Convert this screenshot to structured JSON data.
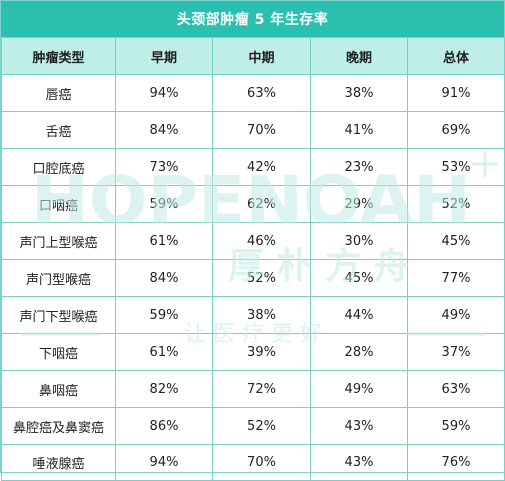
{
  "title": "头颈部肿瘤 5 年生存率",
  "headers": [
    "肿瘤类型",
    "早期",
    "中期",
    "晚期",
    "总体"
  ],
  "rows": [
    {
      "type": "唇癌",
      "early": "94%",
      "mid": "63%",
      "late": "38%",
      "overall": "91%"
    },
    {
      "type": "舌癌",
      "early": "84%",
      "mid": "70%",
      "late": "41%",
      "overall": "69%"
    },
    {
      "type": "口腔底癌",
      "early": "73%",
      "mid": "42%",
      "late": "23%",
      "overall": "53%"
    },
    {
      "type": "口咽癌",
      "early": "59%",
      "mid": "62%",
      "late": "29%",
      "overall": "52%"
    },
    {
      "type": "声门上型喉癌",
      "early": "61%",
      "mid": "46%",
      "late": "30%",
      "overall": "45%"
    },
    {
      "type": "声门型喉癌",
      "early": "84%",
      "mid": "52%",
      "late": "45%",
      "overall": "77%"
    },
    {
      "type": "声门下型喉癌",
      "early": "59%",
      "mid": "38%",
      "late": "44%",
      "overall": "49%"
    },
    {
      "type": "下咽癌",
      "early": "61%",
      "mid": "39%",
      "late": "28%",
      "overall": "37%"
    },
    {
      "type": "鼻咽癌",
      "early": "82%",
      "mid": "72%",
      "late": "49%",
      "overall": "63%"
    },
    {
      "type": "鼻腔癌及鼻窦癌",
      "early": "86%",
      "mid": "52%",
      "late": "43%",
      "overall": "59%"
    },
    {
      "type": "唾液腺癌",
      "early": "94%",
      "mid": "70%",
      "late": "43%",
      "overall": "76%"
    }
  ],
  "watermark": {
    "brand": "HOPENOAH",
    "brand_cn": "厚 朴 方 舟",
    "slogan": "让 医 疗 更 好",
    "color": "#c9efe9"
  },
  "colors": {
    "title_bg": "#2bbfb0",
    "header_bg": "#bfeee8",
    "border": "#79d0c7"
  }
}
